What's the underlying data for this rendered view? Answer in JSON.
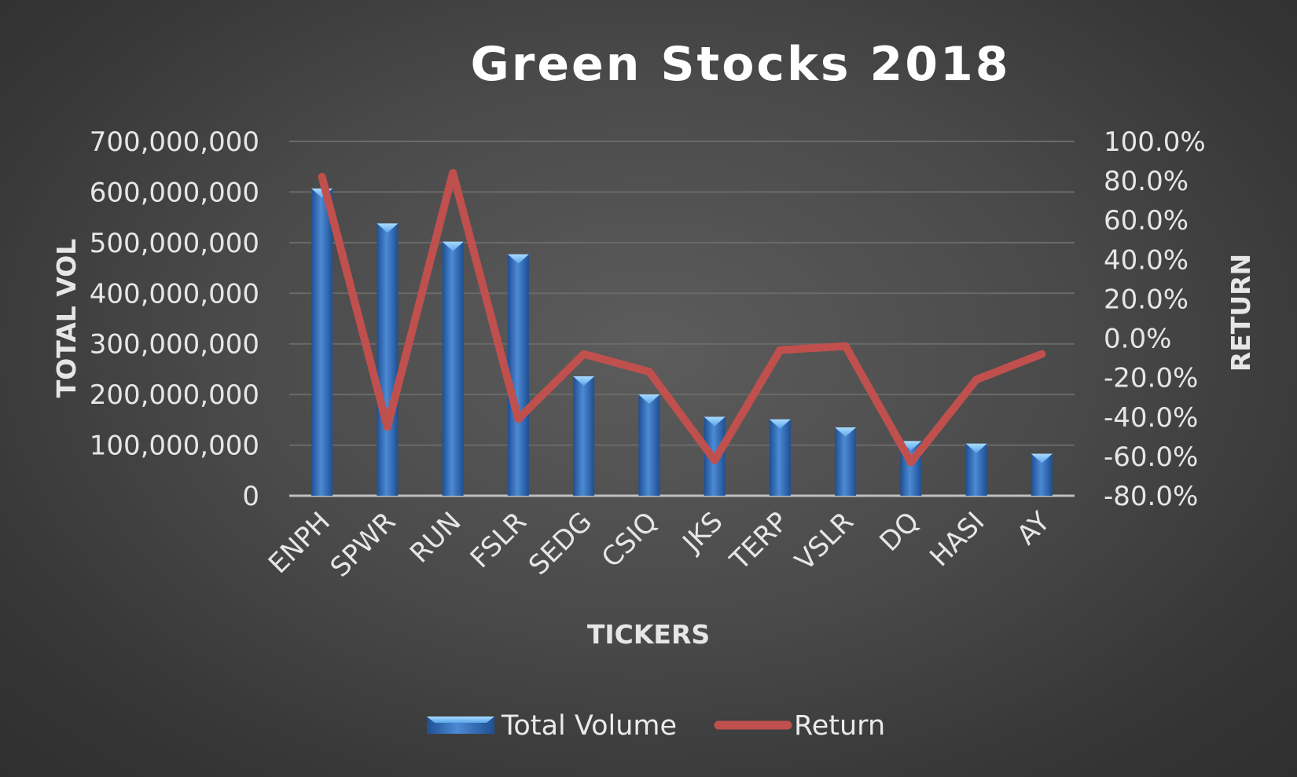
{
  "chart_data": {
    "type": "bar",
    "title": "Green Stocks 2018",
    "xlabel": "TICKERS",
    "ylabel": "TOTAL VOL",
    "y2label": "RETURN",
    "categories": [
      "ENPH",
      "SPWR",
      "RUN",
      "FSLR",
      "SEDG",
      "CSIQ",
      "JKS",
      "TERP",
      "VSLR",
      "DQ",
      "HASI",
      "AY"
    ],
    "series": [
      {
        "name": "Total Volume",
        "type": "bar",
        "axis": "left",
        "values": [
          607000000,
          538000000,
          502000000,
          477000000,
          236000000,
          200000000,
          156000000,
          151000000,
          135000000,
          108000000,
          103000000,
          83000000
        ]
      },
      {
        "name": "Return",
        "type": "line",
        "axis": "right",
        "values": [
          0.82,
          -0.45,
          0.84,
          -0.41,
          -0.08,
          -0.17,
          -0.62,
          -0.06,
          -0.04,
          -0.63,
          -0.21,
          -0.08
        ]
      }
    ],
    "ylim": [
      0,
      700000000
    ],
    "yticks": [
      "0",
      "100,000,000",
      "200,000,000",
      "300,000,000",
      "400,000,000",
      "500,000,000",
      "600,000,000",
      "700,000,000"
    ],
    "y2lim": [
      -0.8,
      1.0
    ],
    "y2ticks": [
      "-80.0%",
      "-60.0%",
      "-40.0%",
      "-20.0%",
      "0.0%",
      "20.0%",
      "40.0%",
      "60.0%",
      "80.0%",
      "100.0%"
    ],
    "grid": true,
    "legend": "bottom",
    "colors": {
      "bar_top": "#7fc4f5",
      "bar_light": "#4c8ad4",
      "bar_dark": "#1e4f93",
      "line": "#c0504d",
      "grid": "#6a6a6a",
      "baseline": "#bfbfbf"
    }
  }
}
